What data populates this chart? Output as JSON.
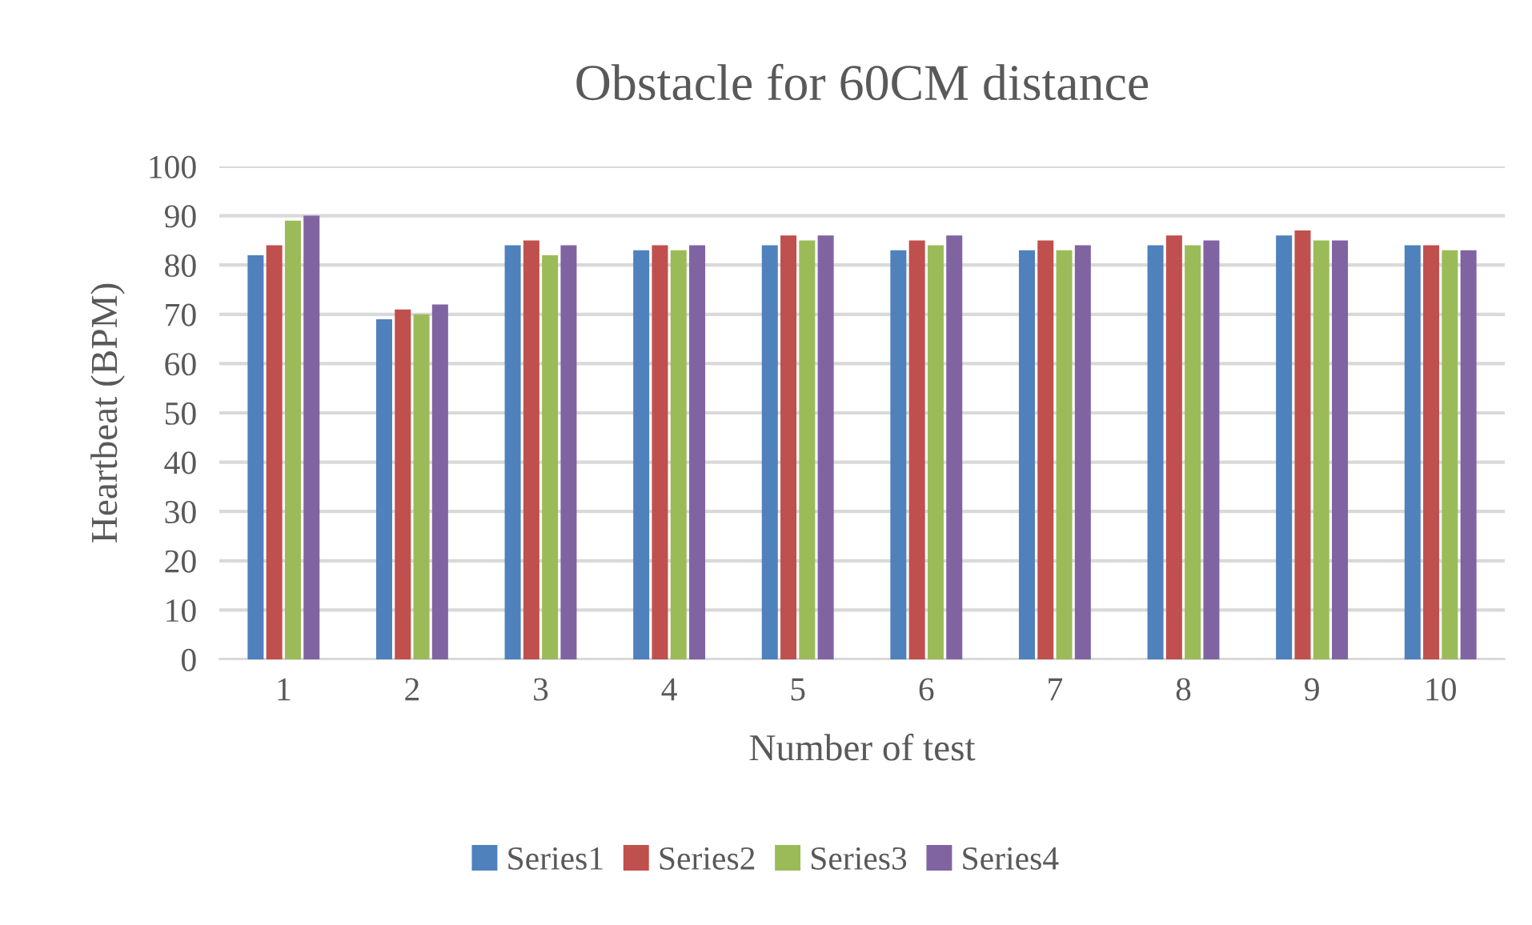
{
  "chart_data": {
    "type": "bar",
    "title": "Obstacle for 60CM distance",
    "xlabel": "Number of test",
    "ylabel": "Heartbeat (BPM)",
    "categories": [
      "1",
      "2",
      "3",
      "4",
      "5",
      "6",
      "7",
      "8",
      "9",
      "10"
    ],
    "series": [
      {
        "name": "Series1",
        "color": "#4f81bd",
        "values": [
          82,
          69,
          84,
          83,
          84,
          83,
          83,
          84,
          86,
          84
        ]
      },
      {
        "name": "Series2",
        "color": "#c0504d",
        "values": [
          84,
          71,
          85,
          84,
          86,
          85,
          85,
          86,
          87,
          84
        ]
      },
      {
        "name": "Series3",
        "color": "#9bbb59",
        "values": [
          89,
          70,
          82,
          83,
          85,
          84,
          83,
          84,
          85,
          83
        ]
      },
      {
        "name": "Series4",
        "color": "#8064a2",
        "values": [
          90,
          72,
          84,
          84,
          86,
          86,
          84,
          85,
          85,
          83
        ]
      }
    ],
    "ylim": [
      0,
      100
    ],
    "yticks": [
      0,
      10,
      20,
      30,
      40,
      50,
      60,
      70,
      80,
      90,
      100
    ],
    "grid": "y",
    "legend": "bottom"
  }
}
